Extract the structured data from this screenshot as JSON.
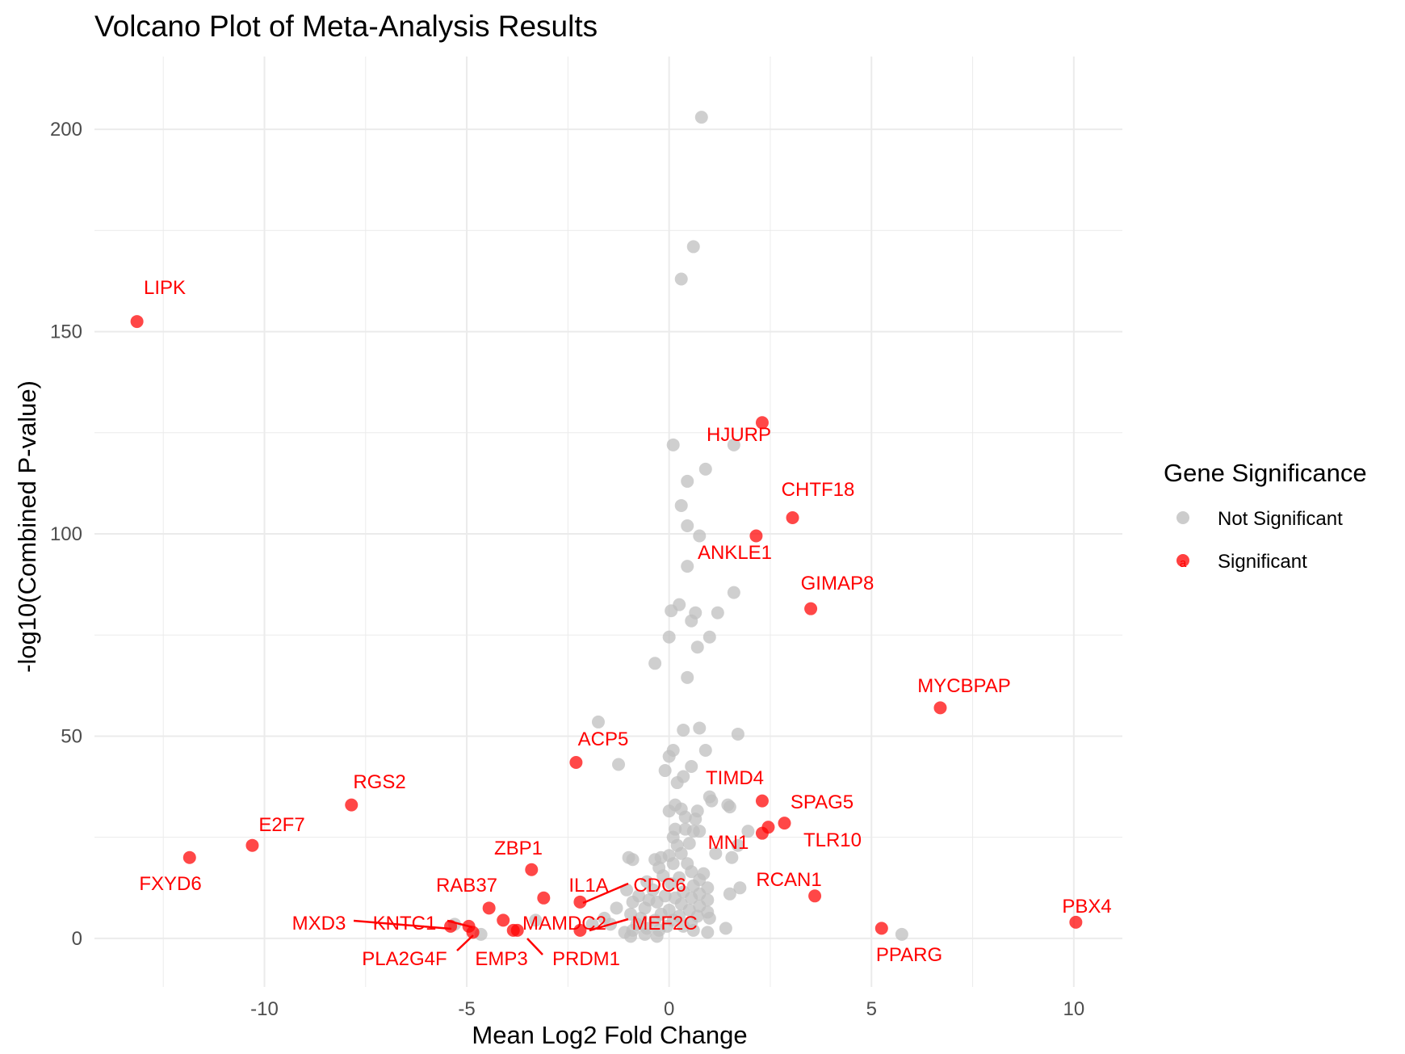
{
  "chart_data": {
    "type": "scatter",
    "title": "Volcano Plot of Meta-Analysis Results",
    "xlabel": "Mean Log2 Fold Change",
    "ylabel": "-log10(Combined P-value)",
    "xlim": [
      -14.2,
      11.2
    ],
    "ylim": [
      -12,
      218
    ],
    "x_ticks": [
      -10,
      -5,
      0,
      5,
      10
    ],
    "x_tick_labels": [
      "-10",
      "-5",
      "0",
      "5",
      "10"
    ],
    "y_ticks": [
      0,
      50,
      100,
      150,
      200
    ],
    "y_tick_labels": [
      "0",
      "50",
      "100",
      "150",
      "200"
    ],
    "grid": true,
    "legend": {
      "title": "Gene Significance",
      "position": "right",
      "entries": [
        {
          "label": "Not Significant",
          "color": "#bfbfbf"
        },
        {
          "label": "Significant",
          "color": "#ff0000"
        }
      ]
    },
    "colors": {
      "not_significant": "#bfbfbf",
      "significant": "#ff0000",
      "grid": "#ebebeb"
    },
    "series": [
      {
        "name": "Not Significant",
        "points": [
          {
            "x": 0.8,
            "y": 203
          },
          {
            "x": 0.6,
            "y": 171
          },
          {
            "x": 0.3,
            "y": 163
          },
          {
            "x": 0.1,
            "y": 122
          },
          {
            "x": 1.6,
            "y": 122
          },
          {
            "x": 0.9,
            "y": 116
          },
          {
            "x": 0.45,
            "y": 113
          },
          {
            "x": 0.3,
            "y": 107
          },
          {
            "x": 0.45,
            "y": 102
          },
          {
            "x": 0.75,
            "y": 99.5
          },
          {
            "x": 0.45,
            "y": 92
          },
          {
            "x": 1.6,
            "y": 85.5
          },
          {
            "x": 0.25,
            "y": 82.5
          },
          {
            "x": 0.05,
            "y": 81
          },
          {
            "x": 1.2,
            "y": 80.5
          },
          {
            "x": 0.65,
            "y": 80.5
          },
          {
            "x": 0.55,
            "y": 78.5
          },
          {
            "x": 0.0,
            "y": 74.5
          },
          {
            "x": 1.0,
            "y": 74.5
          },
          {
            "x": 0.7,
            "y": 72
          },
          {
            "x": -0.35,
            "y": 68
          },
          {
            "x": 0.45,
            "y": 64.5
          },
          {
            "x": -1.75,
            "y": 53.5
          },
          {
            "x": 0.75,
            "y": 52
          },
          {
            "x": 0.35,
            "y": 51.5
          },
          {
            "x": 1.7,
            "y": 50.5
          },
          {
            "x": 0.1,
            "y": 46.5
          },
          {
            "x": 0.9,
            "y": 46.5
          },
          {
            "x": 0.0,
            "y": 45
          },
          {
            "x": -1.25,
            "y": 43
          },
          {
            "x": 0.55,
            "y": 42.5
          },
          {
            "x": -0.1,
            "y": 41.5
          },
          {
            "x": 0.35,
            "y": 40
          },
          {
            "x": 0.2,
            "y": 38.5
          },
          {
            "x": 1.0,
            "y": 35
          },
          {
            "x": 1.05,
            "y": 34
          },
          {
            "x": 1.45,
            "y": 33
          },
          {
            "x": 1.5,
            "y": 32.5
          },
          {
            "x": 0.15,
            "y": 33
          },
          {
            "x": 0.3,
            "y": 32
          },
          {
            "x": 0.0,
            "y": 31.5
          },
          {
            "x": 0.7,
            "y": 31.5
          },
          {
            "x": 0.4,
            "y": 30
          },
          {
            "x": 0.65,
            "y": 29.5
          },
          {
            "x": 0.15,
            "y": 27
          },
          {
            "x": 0.4,
            "y": 27
          },
          {
            "x": 0.6,
            "y": 26.5
          },
          {
            "x": 0.75,
            "y": 26.5
          },
          {
            "x": 1.95,
            "y": 26.5
          },
          {
            "x": 0.1,
            "y": 25
          },
          {
            "x": 0.5,
            "y": 23.5
          },
          {
            "x": 0.2,
            "y": 23
          },
          {
            "x": 1.7,
            "y": 23
          },
          {
            "x": 0.3,
            "y": 21
          },
          {
            "x": 1.15,
            "y": 21
          },
          {
            "x": 0.0,
            "y": 20.5
          },
          {
            "x": -0.2,
            "y": 20
          },
          {
            "x": -0.35,
            "y": 19.5
          },
          {
            "x": -1.0,
            "y": 20
          },
          {
            "x": -0.9,
            "y": 19.5
          },
          {
            "x": 1.55,
            "y": 20
          },
          {
            "x": 0.45,
            "y": 18.5
          },
          {
            "x": 0.1,
            "y": 18.5
          },
          {
            "x": -0.25,
            "y": 17.5
          },
          {
            "x": 0.55,
            "y": 16.5
          },
          {
            "x": 0.85,
            "y": 16
          },
          {
            "x": -0.15,
            "y": 15.5
          },
          {
            "x": 0.25,
            "y": 15
          },
          {
            "x": 0.75,
            "y": 14.5
          },
          {
            "x": -0.55,
            "y": 14
          },
          {
            "x": 0.05,
            "y": 13.5
          },
          {
            "x": 0.6,
            "y": 13
          },
          {
            "x": 0.95,
            "y": 12.5
          },
          {
            "x": 1.75,
            "y": 12.5
          },
          {
            "x": -1.05,
            "y": 12
          },
          {
            "x": -0.4,
            "y": 12
          },
          {
            "x": 0.35,
            "y": 11.5
          },
          {
            "x": 0.75,
            "y": 11
          },
          {
            "x": 1.5,
            "y": 11
          },
          {
            "x": -0.75,
            "y": 10.5
          },
          {
            "x": -0.1,
            "y": 10.5
          },
          {
            "x": 0.15,
            "y": 10
          },
          {
            "x": 0.55,
            "y": 10
          },
          {
            "x": -0.5,
            "y": 9.5
          },
          {
            "x": 0.95,
            "y": 9.5
          },
          {
            "x": -0.9,
            "y": 9
          },
          {
            "x": -0.3,
            "y": 9
          },
          {
            "x": 0.3,
            "y": 8.5
          },
          {
            "x": 0.75,
            "y": 8
          },
          {
            "x": -1.3,
            "y": 7.5
          },
          {
            "x": -0.6,
            "y": 7.5
          },
          {
            "x": 0.0,
            "y": 7
          },
          {
            "x": 0.5,
            "y": 7
          },
          {
            "x": 0.95,
            "y": 6.5
          },
          {
            "x": -0.95,
            "y": 6
          },
          {
            "x": -0.2,
            "y": 6
          },
          {
            "x": 0.25,
            "y": 5.5
          },
          {
            "x": 0.7,
            "y": 5.5
          },
          {
            "x": 1.0,
            "y": 5
          },
          {
            "x": -1.6,
            "y": 5
          },
          {
            "x": -0.7,
            "y": 5
          },
          {
            "x": -0.35,
            "y": 4.5
          },
          {
            "x": 0.1,
            "y": 4.5
          },
          {
            "x": 0.55,
            "y": 4
          },
          {
            "x": -1.9,
            "y": 3.5
          },
          {
            "x": -1.45,
            "y": 3.5
          },
          {
            "x": -0.8,
            "y": 3.5
          },
          {
            "x": -0.05,
            "y": 3
          },
          {
            "x": 0.35,
            "y": 3
          },
          {
            "x": -0.55,
            "y": 2.5
          },
          {
            "x": 1.4,
            "y": 2.5
          },
          {
            "x": -0.9,
            "y": 2
          },
          {
            "x": -0.25,
            "y": 2
          },
          {
            "x": 0.6,
            "y": 2
          },
          {
            "x": 0.95,
            "y": 1.5
          },
          {
            "x": -1.1,
            "y": 1.5
          },
          {
            "x": -0.6,
            "y": 1
          },
          {
            "x": -0.95,
            "y": 0.5
          },
          {
            "x": -0.3,
            "y": 0.5
          },
          {
            "x": -4.65,
            "y": 1
          },
          {
            "x": -5.3,
            "y": 3.5
          },
          {
            "x": -3.3,
            "y": 4.5
          },
          {
            "x": 5.75,
            "y": 1
          }
        ]
      },
      {
        "name": "Significant",
        "points": [
          {
            "x": -13.15,
            "y": 152.5,
            "label": "LIPK"
          },
          {
            "x": 2.3,
            "y": 127.5,
            "label": "HJURP"
          },
          {
            "x": 3.05,
            "y": 104,
            "label": "CHTF18"
          },
          {
            "x": 2.15,
            "y": 99.5,
            "label": "ANKLE1"
          },
          {
            "x": 3.5,
            "y": 81.5,
            "label": "GIMAP8"
          },
          {
            "x": 6.7,
            "y": 57,
            "label": "MYCBPAP"
          },
          {
            "x": -2.3,
            "y": 43.5,
            "label": "ACP5"
          },
          {
            "x": -7.85,
            "y": 33,
            "label": "RGS2"
          },
          {
            "x": 2.3,
            "y": 34,
            "label": "TIMD4"
          },
          {
            "x": 2.85,
            "y": 28.5,
            "label": "SPAG5"
          },
          {
            "x": 2.45,
            "y": 27.5,
            "label": "MN1"
          },
          {
            "x": 2.3,
            "y": 26,
            "label": "TLR10"
          },
          {
            "x": -10.3,
            "y": 23,
            "label": "E2F7"
          },
          {
            "x": -11.85,
            "y": 20,
            "label": "FXYD6"
          },
          {
            "x": -3.4,
            "y": 17,
            "label": "ZBP1"
          },
          {
            "x": 3.6,
            "y": 10.5,
            "label": "RCAN1"
          },
          {
            "x": -3.1,
            "y": 10,
            "label": "RAB37"
          },
          {
            "x": -2.2,
            "y": 9,
            "label": "IL1A"
          },
          {
            "x": -4.45,
            "y": 7.5,
            "label": "CDC6"
          },
          {
            "x": -4.1,
            "y": 4.5,
            "label": "MAMDC2"
          },
          {
            "x": -2.2,
            "y": 2,
            "label": "MEF2C"
          },
          {
            "x": -4.95,
            "y": 3,
            "label": "KNTC1"
          },
          {
            "x": -5.4,
            "y": 3,
            "label": "MXD3"
          },
          {
            "x": -4.85,
            "y": 1.5,
            "label": "PLA2G4F"
          },
          {
            "x": -3.75,
            "y": 2,
            "label": "EMP3"
          },
          {
            "x": -3.85,
            "y": 2,
            "label": "PRDM1"
          },
          {
            "x": 5.25,
            "y": 2.5,
            "label": "PPARG"
          },
          {
            "x": 10.05,
            "y": 4,
            "label": "PBX4"
          }
        ]
      }
    ]
  }
}
